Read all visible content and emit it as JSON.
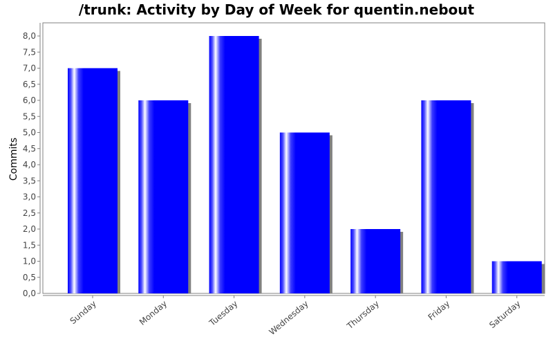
{
  "chart_data": {
    "type": "bar",
    "title": "/trunk: Activity by Day of Week for quentin.nebout",
    "xlabel": "",
    "ylabel": "Commits",
    "categories": [
      "Sunday",
      "Monday",
      "Tuesday",
      "Wednesday",
      "Thursday",
      "Friday",
      "Saturday"
    ],
    "values": [
      7,
      6,
      8,
      5,
      2,
      6,
      1
    ],
    "ylim": [
      0,
      8.4
    ],
    "yticks": [
      "0,0",
      "0,5",
      "1,0",
      "1,5",
      "2,0",
      "2,5",
      "3,0",
      "3,5",
      "4,0",
      "4,5",
      "5,0",
      "5,5",
      "6,0",
      "6,5",
      "7,0",
      "7,5",
      "8,0"
    ],
    "ytick_step": 0.5,
    "grid": false,
    "legend": "none",
    "bar_color": "#0000ff",
    "shadow_color": "#808080"
  }
}
